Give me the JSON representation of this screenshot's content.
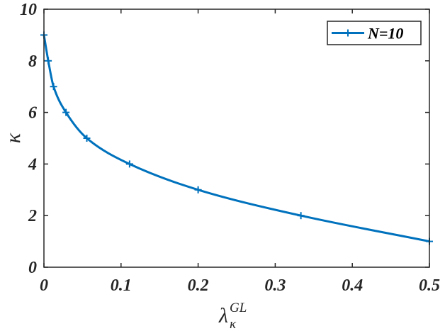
{
  "chart_data": {
    "type": "line",
    "xlim": [
      0,
      0.5
    ],
    "ylim": [
      0,
      10
    ],
    "xticks": [
      0,
      0.1,
      0.2,
      0.3,
      0.4,
      0.5
    ],
    "yticks": [
      0,
      2,
      4,
      6,
      8,
      10
    ],
    "xtick_labels": [
      "0",
      "0.1",
      "0.2",
      "0.3",
      "0.4",
      "0.5"
    ],
    "ytick_labels": [
      "0",
      "2",
      "4",
      "6",
      "8",
      "10"
    ],
    "xlabel": {
      "base": "λ",
      "sup": "GL",
      "sub": "κ"
    },
    "ylabel": "κ",
    "legend_position": "top-right",
    "grid": false,
    "series": [
      {
        "name": "N=10",
        "color": "#0072BD",
        "marker": "plus",
        "x": [
          0.0,
          0.0056,
          0.0125,
          0.0286,
          0.0556,
          0.1111,
          0.2,
          0.3333,
          0.5
        ],
        "y": [
          9,
          8,
          7,
          6,
          5,
          4,
          3,
          2,
          1
        ]
      }
    ]
  }
}
